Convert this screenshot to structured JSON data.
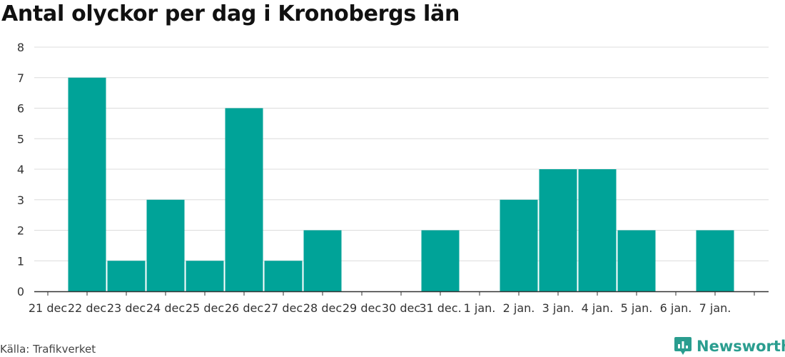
{
  "title": "Antal olyckor per dag i Kronobergs län",
  "source": "Källa: Trafikverket",
  "brand": "Newsworthy",
  "icons": {
    "brand_logo": "newsworthy-logo-icon"
  },
  "colors": {
    "bar": "#00a398",
    "grid": "#dcdcdc",
    "axis": "#333333",
    "text": "#333333",
    "brand": "#2a9d8f"
  },
  "chart_data": {
    "type": "bar",
    "categories": [
      "21 dec",
      "22 dec",
      "23 dec",
      "24 dec",
      "25 dec",
      "26 dec",
      "27 dec",
      "28 dec",
      "29 dec",
      "30 dec",
      "31 dec.",
      "1 jan.",
      "2 jan.",
      "3 jan.",
      "4 jan.",
      "5 jan.",
      "6 jan.",
      "7 jan."
    ],
    "values": [
      0,
      7,
      1,
      3,
      1,
      6,
      1,
      2,
      0,
      0,
      2,
      0,
      3,
      4,
      4,
      2,
      0,
      2
    ],
    "title": "Antal olyckor per dag i Kronobergs län",
    "xlabel": "",
    "ylabel": "",
    "ylim": [
      0,
      8
    ],
    "yticks": [
      0,
      1,
      2,
      3,
      4,
      5,
      6,
      7,
      8
    ],
    "grid": true,
    "legend": "none"
  }
}
